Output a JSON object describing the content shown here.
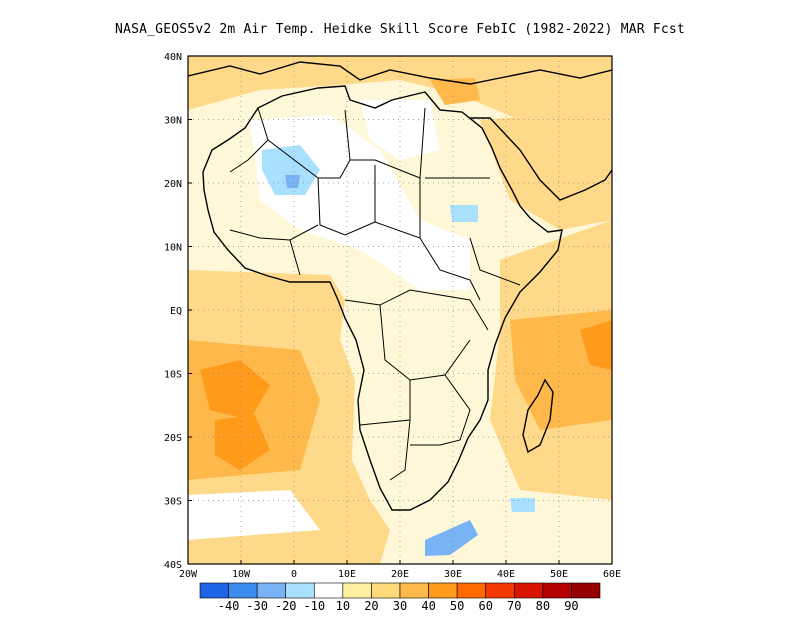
{
  "title": "NASA_GEOS5v2  2m Air Temp. Heidke Skill Score FebIC (1982-2022) MAR Fcst",
  "map": {
    "lat_labels": [
      "40N",
      "30N",
      "20N",
      "10N",
      "EQ",
      "10S",
      "20S",
      "30S",
      "40S"
    ],
    "lon_labels": [
      "20W",
      "10W",
      "0",
      "10E",
      "20E",
      "30E",
      "40E",
      "50E",
      "60E"
    ],
    "lon_range": [
      -20,
      60
    ],
    "lat_range": [
      -40,
      40
    ],
    "grid": "dotted"
  },
  "colorbar": {
    "labels": [
      "-40",
      "-30",
      "-20",
      "-10",
      "10",
      "20",
      "30",
      "40",
      "50",
      "60",
      "70",
      "80",
      "90"
    ],
    "colors": [
      "#1e64e6",
      "#3c8cf0",
      "#78b4f5",
      "#aae0ff",
      "#ffffff",
      "#fff0a0",
      "#ffd97a",
      "#ffb84a",
      "#ff9a1a",
      "#ff6a00",
      "#f23a00",
      "#d81400",
      "#b40000",
      "#960000"
    ]
  }
}
